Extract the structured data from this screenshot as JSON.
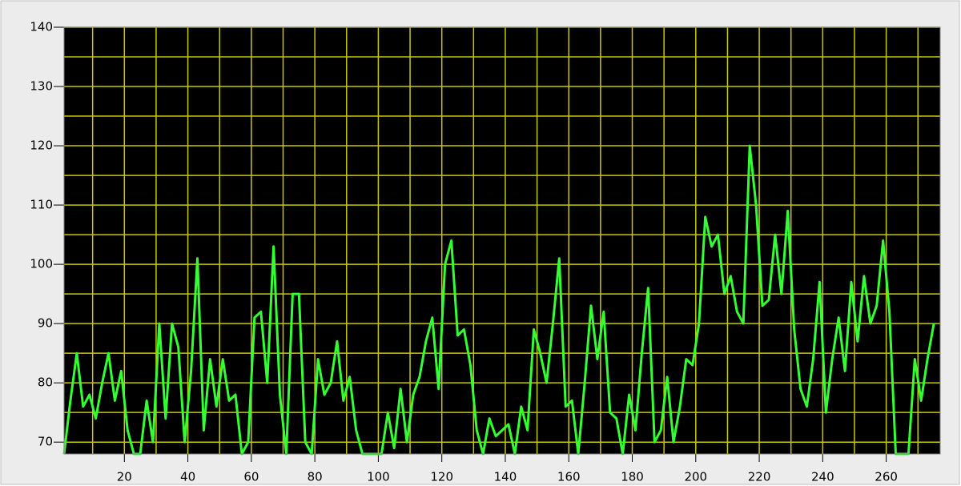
{
  "chart_data": {
    "type": "line",
    "x": [
      1,
      3,
      5,
      7,
      9,
      11,
      13,
      15,
      17,
      19,
      21,
      23,
      25,
      27,
      29,
      31,
      33,
      35,
      37,
      39,
      41,
      43,
      45,
      47,
      49,
      51,
      53,
      55,
      57,
      59,
      61,
      63,
      65,
      67,
      69,
      71,
      73,
      75,
      77,
      79,
      81,
      83,
      85,
      87,
      89,
      91,
      93,
      95,
      97,
      99,
      101,
      103,
      105,
      107,
      109,
      111,
      113,
      115,
      117,
      119,
      121,
      123,
      125,
      127,
      129,
      131,
      133,
      135,
      137,
      139,
      141,
      143,
      145,
      147,
      149,
      151,
      153,
      155,
      157,
      159,
      161,
      163,
      165,
      167,
      169,
      171,
      173,
      175,
      177,
      179,
      181,
      183,
      185,
      187,
      189,
      191,
      193,
      195,
      197,
      199,
      201,
      203,
      205,
      207,
      209,
      211,
      213,
      215,
      217,
      219,
      221,
      223,
      225,
      227,
      229,
      231,
      233,
      235,
      237,
      239,
      241,
      243,
      245,
      247,
      249,
      251,
      253,
      255,
      257,
      259,
      261,
      263,
      265,
      267,
      269,
      271,
      273,
      275
    ],
    "series": [
      {
        "color": "#33ff33",
        "values": [
          68,
          77,
          85,
          76,
          78,
          74,
          80,
          85,
          77,
          82,
          72,
          68,
          68,
          77,
          70,
          90,
          74,
          90,
          86,
          70,
          82,
          101,
          72,
          84,
          76,
          84,
          77,
          78,
          68,
          70,
          91,
          92,
          80,
          103,
          78,
          68,
          95,
          95,
          70,
          68,
          84,
          78,
          80,
          87,
          77,
          81,
          72,
          68,
          68,
          68,
          68,
          75,
          69,
          79,
          70,
          78,
          81,
          87,
          91,
          79,
          100,
          104,
          88,
          89,
          83,
          72,
          68,
          74,
          71,
          72,
          73,
          68,
          76,
          72,
          89,
          85,
          80,
          90,
          101,
          76,
          77,
          68,
          80,
          93,
          84,
          92,
          75,
          74,
          68,
          78,
          72,
          85,
          96,
          70,
          72,
          81,
          70,
          76,
          84,
          83,
          90,
          108,
          103,
          105,
          95,
          98,
          92,
          90,
          120,
          110,
          93,
          94,
          105,
          95,
          109,
          89,
          79,
          76,
          84,
          97,
          75,
          84,
          91,
          82,
          97,
          87,
          98,
          90,
          93,
          104,
          92,
          68,
          68,
          68,
          84,
          77,
          84,
          90
        ]
      }
    ],
    "xlim": [
      1,
      277
    ],
    "ylim": [
      68,
      140
    ],
    "xticks": [
      20,
      40,
      60,
      80,
      100,
      120,
      140,
      160,
      180,
      200,
      220,
      240,
      260
    ],
    "yticks": [
      70,
      80,
      90,
      100,
      110,
      120,
      130,
      140
    ],
    "x_minor_ticks": [
      10,
      30,
      50,
      70,
      90,
      110,
      130,
      150,
      170,
      190,
      210,
      230,
      250,
      270
    ],
    "y_minor_ticks": [
      75,
      85,
      95,
      105,
      115,
      125,
      135
    ],
    "grid": true,
    "grid_color": "#c8c800",
    "background": "#000000"
  }
}
